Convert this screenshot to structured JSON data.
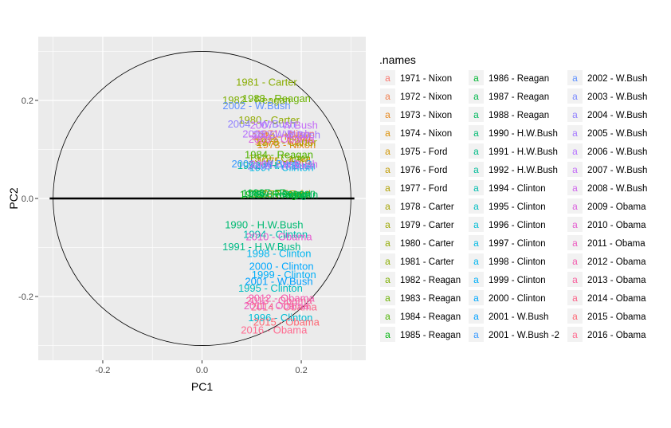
{
  "chart_data": {
    "type": "scatter",
    "title": "",
    "xlabel": "PC1",
    "ylabel": "PC2",
    "xlim": [
      -0.33,
      0.33
    ],
    "ylim": [
      -0.33,
      0.33
    ],
    "x_ticks": [
      -0.2,
      0.0,
      0.2
    ],
    "x_tick_labels": [
      "-0.2",
      "0.0",
      "0.2"
    ],
    "y_ticks": [
      -0.2,
      0.0,
      0.2
    ],
    "y_tick_labels": [
      "-0.2",
      "0.0",
      "0.2"
    ],
    "grid": true,
    "circle_radius": 0.3,
    "baseline_y": 0,
    "legend_title": ".names",
    "legend_position": "right",
    "legend_key_glyph": "a",
    "points": [
      {
        "name": "1971 - Nixon",
        "x": 0.168,
        "y": 0.13,
        "color": "#F8766D"
      },
      {
        "name": "1972 - Nixon",
        "x": 0.165,
        "y": 0.115,
        "color": "#F07E4C"
      },
      {
        "name": "1973 - Nixon",
        "x": 0.17,
        "y": 0.108,
        "color": "#E6861B"
      },
      {
        "name": "1974 - Nixon",
        "x": 0.16,
        "y": 0.125,
        "color": "#DB8E00"
      },
      {
        "name": "1975 - Ford",
        "x": 0.165,
        "y": 0.075,
        "color": "#CF9400"
      },
      {
        "name": "1976 - Ford",
        "x": 0.15,
        "y": 0.008,
        "color": "#C09B00"
      },
      {
        "name": "1977 - Ford",
        "x": 0.165,
        "y": 0.007,
        "color": "#B0A100"
      },
      {
        "name": "1978 - Carter",
        "x": 0.17,
        "y": 0.113,
        "color": "#A5A400"
      },
      {
        "name": "1979 - Carter",
        "x": 0.155,
        "y": 0.08,
        "color": "#9CA700"
      },
      {
        "name": "1980 - Carter",
        "x": 0.135,
        "y": 0.158,
        "color": "#91AA00"
      },
      {
        "name": "1981 - Carter",
        "x": 0.13,
        "y": 0.236,
        "color": "#88AC00"
      },
      {
        "name": "1982 - Reagan",
        "x": 0.11,
        "y": 0.199,
        "color": "#7CAE00"
      },
      {
        "name": "1983 - Reagan",
        "x": 0.15,
        "y": 0.202,
        "color": "#6AB100"
      },
      {
        "name": "1984 - Reagan",
        "x": 0.155,
        "y": 0.088,
        "color": "#4DB300"
      },
      {
        "name": "1985 - Reagan",
        "x": 0.145,
        "y": 0.006,
        "color": "#00B40D"
      },
      {
        "name": "1986 - Reagan",
        "x": 0.15,
        "y": 0.009,
        "color": "#00B634"
      },
      {
        "name": "1987 - Reagan",
        "x": 0.16,
        "y": 0.01,
        "color": "#00B74B"
      },
      {
        "name": "1988 - Reagan",
        "x": 0.165,
        "y": 0.006,
        "color": "#00B85E"
      },
      {
        "name": "1990 - H.W.Bush",
        "x": 0.125,
        "y": -0.055,
        "color": "#00BA72"
      },
      {
        "name": "1991 - H.W.Bush",
        "x": 0.12,
        "y": -0.1,
        "color": "#00BB86"
      },
      {
        "name": "1992 - H.W.Bush",
        "x": 0.15,
        "y": 0.066,
        "color": "#00BC9A"
      },
      {
        "name": "1994 - Clinton",
        "x": 0.148,
        "y": -0.075,
        "color": "#00BDAE"
      },
      {
        "name": "1995 - Clinton",
        "x": 0.138,
        "y": -0.185,
        "color": "#00BEC1"
      },
      {
        "name": "1996 - Clinton",
        "x": 0.158,
        "y": -0.245,
        "color": "#00BCD4"
      },
      {
        "name": "1997 - Clinton",
        "x": 0.16,
        "y": 0.062,
        "color": "#00B9E3"
      },
      {
        "name": "1998 - Clinton",
        "x": 0.155,
        "y": -0.114,
        "color": "#00B5EF"
      },
      {
        "name": "1999 - Clinton",
        "x": 0.165,
        "y": -0.157,
        "color": "#00AFF8"
      },
      {
        "name": "2000 - Clinton",
        "x": 0.16,
        "y": -0.14,
        "color": "#00A8FE"
      },
      {
        "name": "2001 - W.Bush",
        "x": 0.155,
        "y": -0.171,
        "color": "#00A1FF"
      },
      {
        "name": "2001 - W.Bush -2",
        "x": 0.14,
        "y": 0.069,
        "color": "#3899FF"
      },
      {
        "name": "2002 - W.Bush",
        "x": 0.11,
        "y": 0.188,
        "color": "#5F91FF"
      },
      {
        "name": "2003 - W.Bush",
        "x": 0.16,
        "y": 0.065,
        "color": "#7B8AFF"
      },
      {
        "name": "2004 - W.Bush",
        "x": 0.12,
        "y": 0.15,
        "color": "#9181FF"
      },
      {
        "name": "2005 - W.Bush",
        "x": 0.17,
        "y": 0.128,
        "color": "#A579FF"
      },
      {
        "name": "2006 - W.Bush",
        "x": 0.15,
        "y": 0.13,
        "color": "#B572FF"
      },
      {
        "name": "2007 - W.Bush",
        "x": 0.165,
        "y": 0.148,
        "color": "#C46CF7"
      },
      {
        "name": "2008 - W.Bush",
        "x": 0.165,
        "y": 0.068,
        "color": "#D066EC"
      },
      {
        "name": "2009 - Obama",
        "x": 0.16,
        "y": 0.119,
        "color": "#DB62DF"
      },
      {
        "name": "2010 - Obama",
        "x": 0.155,
        "y": -0.08,
        "color": "#E55DD0"
      },
      {
        "name": "2011 - Obama",
        "x": 0.15,
        "y": -0.22,
        "color": "#ED5BC0"
      },
      {
        "name": "2012 - Obama",
        "x": 0.16,
        "y": -0.205,
        "color": "#F35AAE"
      },
      {
        "name": "2013 - Obama",
        "x": 0.155,
        "y": -0.21,
        "color": "#F85E9C"
      },
      {
        "name": "2014 - Obama",
        "x": 0.165,
        "y": -0.223,
        "color": "#FB6389"
      },
      {
        "name": "2015 - Obama",
        "x": 0.17,
        "y": -0.254,
        "color": "#FD6875"
      },
      {
        "name": "2016 - Obama",
        "x": 0.145,
        "y": -0.27,
        "color": "#FF6C91"
      }
    ]
  },
  "colors": {
    "panel_background": "#EBEBEB",
    "grid_major": "#FFFFFF",
    "legend_key_background": "#F2F2F2",
    "circle": "#000000",
    "baseline": "#000000"
  }
}
